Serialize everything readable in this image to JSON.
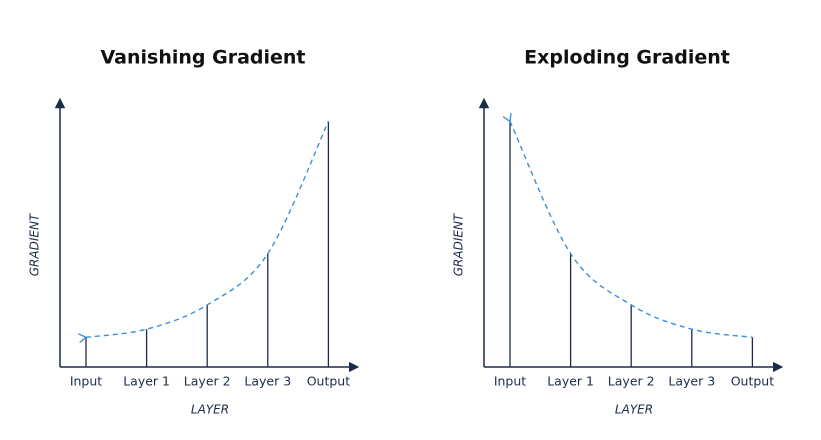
{
  "chart_data": [
    {
      "type": "stem",
      "title": "Vanishing Gradient",
      "x_label": "LAYER",
      "y_label": "GRADIENT",
      "categories": [
        "Input",
        "Layer 1",
        "Layer 2",
        "Layer 3",
        "Output"
      ],
      "values": [
        11,
        14,
        23,
        42,
        91
      ],
      "color": "#1c2b4a",
      "line_color": "#3a8fd9",
      "ylim": [
        0,
        100
      ]
    },
    {
      "type": "stem",
      "title": "Exploding Gradient",
      "x_label": "LAYER",
      "y_label": "GRADIENT",
      "categories": [
        "Input",
        "Layer 1",
        "Layer 2",
        "Layer 3",
        "Output"
      ],
      "values": [
        91,
        42,
        23,
        14,
        11
      ],
      "color": "#1c2b4a",
      "line_color": "#3a8fd9",
      "ylim": [
        0,
        100
      ]
    }
  ]
}
